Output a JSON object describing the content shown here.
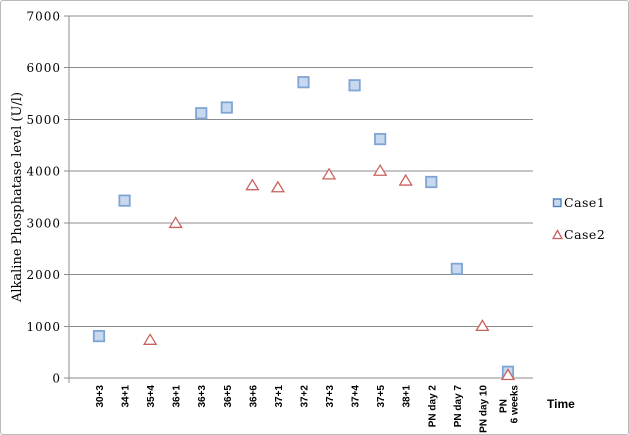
{
  "chart_data": {
    "type": "scatter",
    "title": "",
    "xlabel": "Time",
    "ylabel": "Alkaline Phosphatase level (U/l)",
    "ylim": [
      0,
      7000
    ],
    "yticks": [
      0,
      1000,
      2000,
      3000,
      4000,
      5000,
      6000,
      7000
    ],
    "grid": true,
    "legend_position": "right",
    "categories": [
      "30+3",
      "34+1",
      "35+4",
      "36+1",
      "36+3",
      "36+5",
      "36+6",
      "37+1",
      "37+2",
      "37+3",
      "37+4",
      "37+5",
      "38+1",
      "PN day 2",
      "PN day 7",
      "PN day 10",
      "PN\n6 weeks"
    ],
    "series": [
      {
        "name": "Case1",
        "marker": "square",
        "fill": "#c8d8ee",
        "stroke": "#7fa5d5",
        "values": [
          810,
          3430,
          null,
          null,
          5120,
          5230,
          null,
          null,
          5720,
          null,
          5660,
          4620,
          null,
          3790,
          2110,
          null,
          120
        ]
      },
      {
        "name": "Case2",
        "marker": "triangle",
        "fill": "#ffffff",
        "stroke": "#c9625e",
        "values": [
          null,
          null,
          740,
          3000,
          null,
          null,
          3730,
          3690,
          null,
          3940,
          null,
          4010,
          3820,
          null,
          null,
          1010,
          60
        ]
      }
    ],
    "colors": {
      "gridline": "#8c8c8c",
      "axis": "#8c8c8c",
      "text": "#000000"
    }
  }
}
